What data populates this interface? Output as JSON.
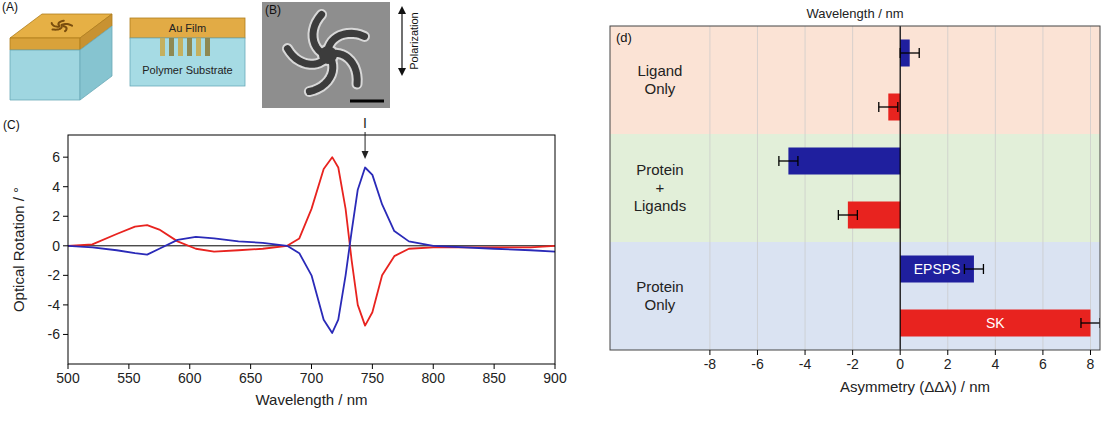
{
  "chart_data": [
    {
      "type": "line",
      "panel_label": "(C)",
      "x_label": "Wavelength / nm",
      "y_label": "Optical Rotation / °",
      "x": [
        500,
        520,
        540,
        555,
        565,
        575,
        590,
        605,
        620,
        640,
        660,
        680,
        690,
        700,
        710,
        717,
        722,
        728,
        733,
        738,
        744,
        750,
        758,
        768,
        780,
        800,
        850,
        880,
        900
      ],
      "series": [
        {
          "color": "#e8231f",
          "values": [
            0,
            0.1,
            0.8,
            1.3,
            1.4,
            1.1,
            0.3,
            -0.2,
            -0.4,
            -0.3,
            -0.2,
            0,
            0.5,
            2.5,
            5.2,
            6.0,
            5.3,
            2.5,
            -1.0,
            -4.0,
            -5.4,
            -4.5,
            -2.0,
            -0.7,
            -0.2,
            -0.1,
            -0.1,
            -0.1,
            0
          ]
        },
        {
          "color": "#2a2ab8",
          "values": [
            0,
            -0.1,
            -0.3,
            -0.5,
            -0.6,
            -0.2,
            0.4,
            0.6,
            0.5,
            0.3,
            0.2,
            0,
            -0.5,
            -2.0,
            -5.0,
            -5.9,
            -5.0,
            -2.0,
            1.0,
            3.8,
            5.3,
            4.8,
            2.8,
            1.0,
            0.3,
            0,
            -0.2,
            -0.3,
            -0.4
          ]
        }
      ],
      "xlim": [
        500,
        900
      ],
      "xticks": [
        500,
        550,
        600,
        650,
        700,
        750,
        800,
        850,
        900
      ],
      "ylim": [
        -8,
        7.5
      ],
      "yticks": [
        -6,
        -4,
        -2,
        0,
        2,
        4,
        6
      ],
      "grid": false,
      "annotations": [
        {
          "text": "I",
          "x": 744
        }
      ]
    },
    {
      "type": "bar",
      "orientation": "horizontal",
      "panel_label": "(d)",
      "title": "Wavelength / nm",
      "x_label": "Asymmetry (ΔΔλ) / nm",
      "categories": [
        "Ligand Only",
        "Protein + Ligands",
        "Protein Only"
      ],
      "series": [
        {
          "name": "EPSPS",
          "color": "#1f1f9e",
          "values": [
            0.4,
            -4.7,
            3.1
          ],
          "errors": [
            0.4,
            0.4,
            0.4
          ]
        },
        {
          "name": "SK",
          "color": "#e8231f",
          "values": [
            -0.5,
            -2.2,
            8.0
          ],
          "errors": [
            0.4,
            0.4,
            0.4
          ]
        }
      ],
      "xlim": [
        -12.2,
        8.4
      ],
      "xticks": [
        -8,
        -6,
        -4,
        -2,
        0,
        2,
        4,
        6,
        8
      ],
      "grid": true
    }
  ],
  "diagram": {
    "panel_a": {
      "label": "(A)",
      "layers": [
        "Au Film",
        "Polymer Substrate"
      ]
    },
    "panel_b": {
      "label": "(B)",
      "polarization": "Polarization"
    }
  }
}
